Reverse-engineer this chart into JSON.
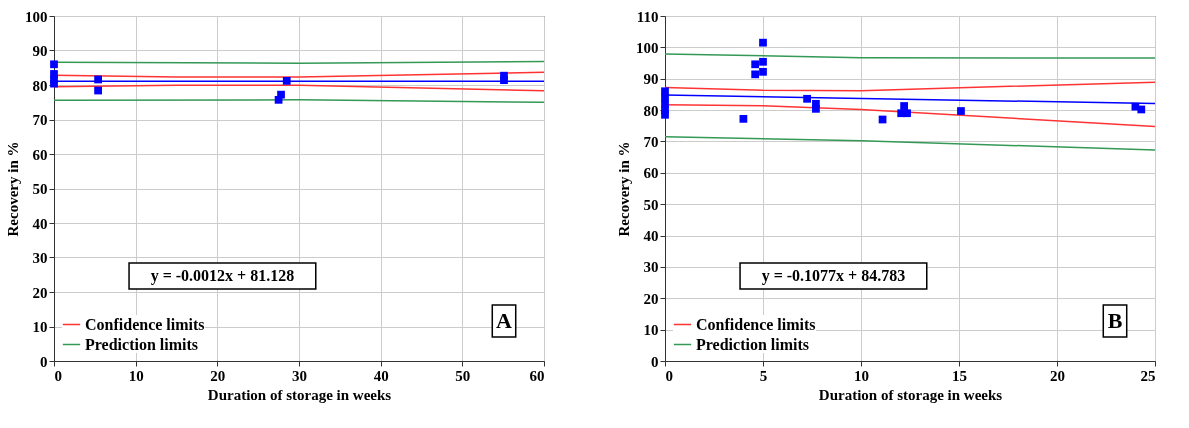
{
  "chart_data": [
    {
      "type": "scatter",
      "xlabel": "Duration of storage in weeks",
      "ylabel": "Recovery in %",
      "xlim": [
        0,
        60
      ],
      "ylim": [
        0,
        100
      ],
      "xticks": [
        0,
        10,
        20,
        30,
        40,
        50,
        60
      ],
      "yticks": [
        0,
        10,
        20,
        30,
        40,
        50,
        60,
        70,
        80,
        90,
        100
      ],
      "grid": true,
      "legend": "bottom left",
      "annotations": [
        "y = -0.0012x + 81.128",
        "A"
      ],
      "series": [
        {
          "marker": "square",
          "color": "#0000ff",
          "x": [
            0,
            0,
            0,
            0,
            5.4,
            5.4,
            27.5,
            27.8,
            28.5,
            55.1,
            55.1
          ],
          "values": [
            86,
            83.2,
            81.6,
            80.4,
            81.6,
            78.4,
            75.7,
            77.2,
            81.2,
            82.7,
            81.4
          ]
        },
        {
          "type": "line",
          "color": "#0000ff",
          "x": [
            0,
            60
          ],
          "values": [
            81.1,
            81.1
          ]
        },
        {
          "type": "line",
          "name": "Confidence limits",
          "color": "#ff3333",
          "x": [
            0,
            15,
            30,
            60
          ],
          "values": [
            82.8,
            82.3,
            82.3,
            83.7
          ]
        },
        {
          "type": "line",
          "color": "#ff3333",
          "x": [
            0,
            15,
            30,
            60
          ],
          "values": [
            79.5,
            79.9,
            79.9,
            78.3
          ]
        },
        {
          "type": "line",
          "name": "Prediction limits",
          "color": "#339955",
          "x": [
            0,
            30,
            60
          ],
          "values": [
            86.6,
            86.3,
            86.8
          ]
        },
        {
          "type": "line",
          "color": "#339955",
          "x": [
            0,
            30,
            60
          ],
          "values": [
            75.6,
            75.7,
            75.0
          ]
        }
      ]
    },
    {
      "type": "scatter",
      "xlabel": "Duration of storage in weeks",
      "ylabel": "Recovery in %",
      "xlim": [
        0,
        25
      ],
      "ylim": [
        0,
        110
      ],
      "xticks": [
        0,
        5,
        10,
        15,
        20,
        25
      ],
      "yticks": [
        0,
        10,
        20,
        30,
        40,
        50,
        60,
        70,
        80,
        90,
        100,
        110
      ],
      "grid": true,
      "legend": "bottom left",
      "annotations": [
        "y = -0.1077x + 84.783",
        "B"
      ],
      "series": [
        {
          "marker": "square",
          "color": "#0000ff",
          "x": [
            0,
            0,
            0,
            0,
            0,
            4.0,
            4.6,
            4.6,
            5.0,
            5.0,
            5.0,
            7.25,
            7.7,
            7.7,
            11.1,
            12.2,
            12.35,
            12.05,
            15.1,
            24.0,
            24.3
          ],
          "values": [
            86,
            84,
            82,
            80,
            78.5,
            77.2,
            94.6,
            91.4,
            101.5,
            95.4,
            92.2,
            83.6,
            82,
            80.4,
            77.0,
            81.3,
            79,
            79,
            79.7,
            81.1,
            80.2
          ]
        },
        {
          "type": "line",
          "color": "#0000ff",
          "x": [
            0,
            25
          ],
          "values": [
            84.8,
            82.1
          ]
        },
        {
          "type": "line",
          "name": "Confidence limits",
          "color": "#ff3333",
          "x": [
            0,
            5,
            10,
            25
          ],
          "values": [
            87.2,
            86.3,
            86.2,
            88.9
          ]
        },
        {
          "type": "line",
          "color": "#ff3333",
          "x": [
            0,
            5,
            10,
            25
          ],
          "values": [
            81.7,
            81.4,
            80.2,
            74.8
          ]
        },
        {
          "type": "line",
          "name": "Prediction limits",
          "color": "#339955",
          "x": [
            0,
            10,
            25
          ],
          "values": [
            97.9,
            96.7,
            96.6
          ]
        },
        {
          "type": "line",
          "color": "#339955",
          "x": [
            0,
            10,
            25
          ],
          "values": [
            71.5,
            70.2,
            67.3
          ]
        }
      ]
    }
  ]
}
